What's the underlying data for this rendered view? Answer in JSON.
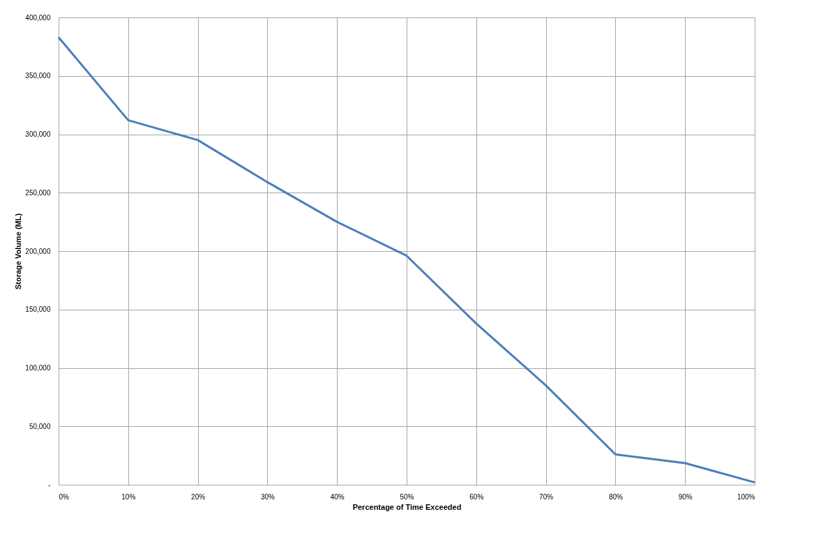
{
  "chart_data": {
    "type": "line",
    "xlabel": "Percentage of Time Exceeded",
    "ylabel": "Storage Volume (ML)",
    "x": [
      0,
      10,
      20,
      30,
      40,
      50,
      60,
      70,
      80,
      90,
      100
    ],
    "series": [
      {
        "color": "#4a7ebb",
        "values": [
          383000,
          312000,
          295000,
          259000,
          225000,
          196000,
          138000,
          85000,
          26000,
          18500,
          2000
        ]
      }
    ],
    "xlim": [
      0,
      100
    ],
    "xticks": [
      {
        "value": 0,
        "label": "0%"
      },
      {
        "value": 10,
        "label": "10%"
      },
      {
        "value": 20,
        "label": "20%"
      },
      {
        "value": 30,
        "label": "30%"
      },
      {
        "value": 40,
        "label": "40%"
      },
      {
        "value": 50,
        "label": "50%"
      },
      {
        "value": 60,
        "label": "60%"
      },
      {
        "value": 70,
        "label": "70%"
      },
      {
        "value": 80,
        "label": "80%"
      },
      {
        "value": 90,
        "label": "90%"
      },
      {
        "value": 100,
        "label": "100%"
      }
    ],
    "ylim": [
      0,
      400000
    ],
    "yticks": [
      {
        "value": 0,
        "label": "-"
      },
      {
        "value": 50000,
        "label": "50,000"
      },
      {
        "value": 100000,
        "label": "100,000"
      },
      {
        "value": 150000,
        "label": "150,000"
      },
      {
        "value": 200000,
        "label": "200,000"
      },
      {
        "value": 250000,
        "label": "250,000"
      },
      {
        "value": 300000,
        "label": "300,000"
      },
      {
        "value": 350000,
        "label": "350,000"
      },
      {
        "value": 400000,
        "label": "400,000"
      }
    ],
    "grid": true,
    "legend": false,
    "marker": "none",
    "line_style": "solid"
  }
}
